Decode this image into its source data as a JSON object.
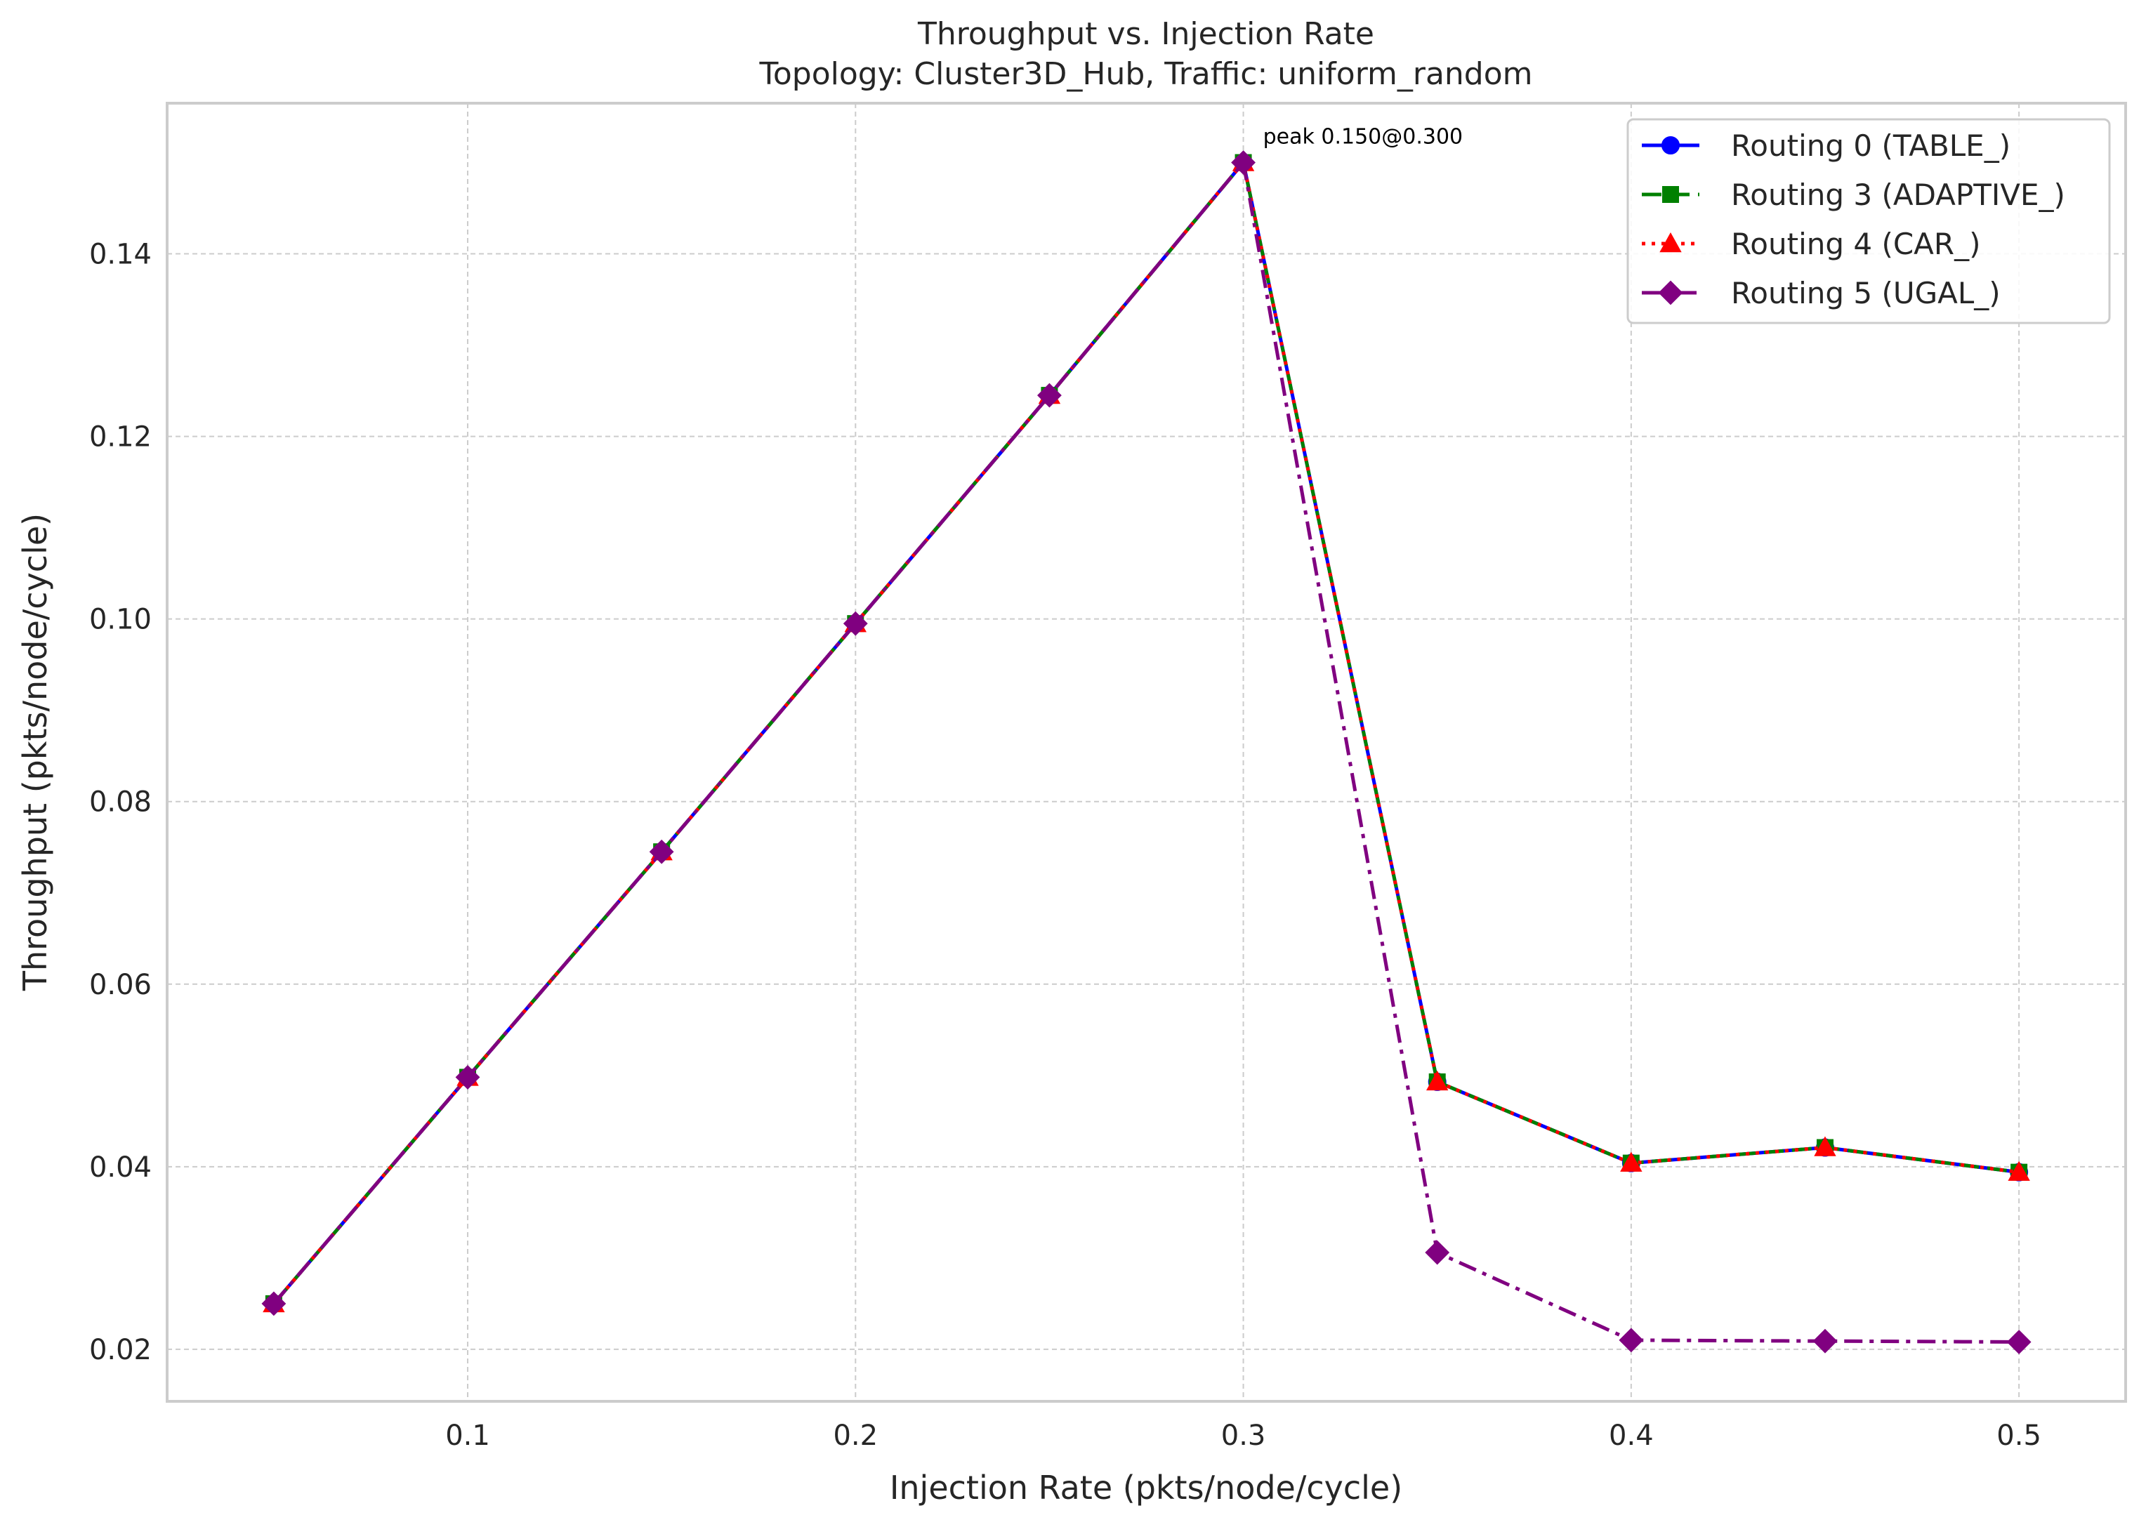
{
  "chart_data": {
    "type": "line",
    "title": "Throughput vs. Injection Rate",
    "subtitle": "Topology: Cluster3D_Hub, Traffic: uniform_random",
    "xlabel": "Injection Rate (pkts/node/cycle)",
    "ylabel": "Throughput (pkts/node/cycle)",
    "xlim": [
      0.0225,
      0.5275
    ],
    "ylim": [
      0.0143,
      0.1565
    ],
    "xticks": [
      0.1,
      0.2,
      0.3,
      0.4,
      0.5
    ],
    "xtick_labels": [
      "0.1",
      "0.2",
      "0.3",
      "0.4",
      "0.5"
    ],
    "yticks": [
      0.02,
      0.04,
      0.06,
      0.08,
      0.1,
      0.12,
      0.14
    ],
    "ytick_labels": [
      "0.02",
      "0.04",
      "0.06",
      "0.08",
      "0.10",
      "0.12",
      "0.14"
    ],
    "grid": true,
    "legend_position": "top-right",
    "x": [
      0.05,
      0.1,
      0.15,
      0.2,
      0.25,
      0.3,
      0.35,
      0.4,
      0.45,
      0.5
    ],
    "series": [
      {
        "name": "Routing 0 (TABLE_)",
        "color": "#0000ff",
        "linestyle": "solid",
        "marker": "circle",
        "values": [
          0.025,
          0.0498,
          0.0745,
          0.0995,
          0.1245,
          0.15,
          0.0493,
          0.0404,
          0.0421,
          0.0394
        ]
      },
      {
        "name": "Routing 3 (ADAPTIVE_)",
        "color": "#008000",
        "linestyle": "dashed",
        "marker": "square",
        "values": [
          0.025,
          0.0498,
          0.0745,
          0.0995,
          0.1245,
          0.15,
          0.0493,
          0.0404,
          0.0421,
          0.0394
        ]
      },
      {
        "name": "Routing 4 (CAR_)",
        "color": "#ff0000",
        "linestyle": "dotted",
        "marker": "triangle",
        "values": [
          0.025,
          0.0498,
          0.0745,
          0.0995,
          0.1245,
          0.15,
          0.0493,
          0.0404,
          0.0421,
          0.0394
        ]
      },
      {
        "name": "Routing 5 (UGAL_)",
        "color": "#800080",
        "linestyle": "dashdot",
        "marker": "diamond",
        "values": [
          0.025,
          0.0498,
          0.0745,
          0.0995,
          0.1245,
          0.15,
          0.0306,
          0.021,
          0.0209,
          0.0208
        ]
      }
    ],
    "annotations": [
      {
        "text": "peak 0.150@0.300",
        "x": 0.3,
        "y": 0.15
      }
    ]
  }
}
